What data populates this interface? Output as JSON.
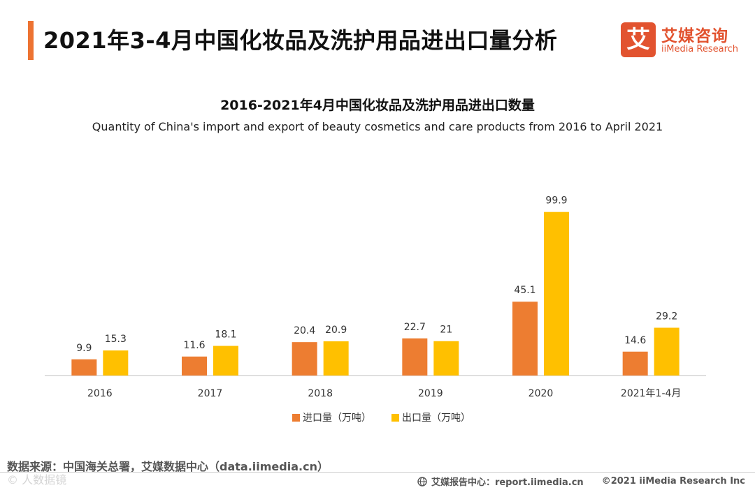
{
  "header": {
    "title": "2021年3-4月中国化妆品及洗护用品进出口量分析",
    "accent_color": "#ED7332"
  },
  "logo": {
    "mark": "艾",
    "name_cn": "艾媒咨询",
    "name_en": "iiMedia Research",
    "color": "#E2532F"
  },
  "chart_data": {
    "type": "bar",
    "title": "2016-2021年4月中国化妆品及洗护用品进出口数量",
    "subtitle": "Quantity of China's import and export of beauty cosmetics and care products from 2016 to April 2021",
    "categories": [
      "2016",
      "2017",
      "2018",
      "2019",
      "2020",
      "2021年1-4月"
    ],
    "series": [
      {
        "name": "进口量（万吨）",
        "color": "#ED7D31",
        "values": [
          9.9,
          11.6,
          20.4,
          22.7,
          45.1,
          14.6
        ]
      },
      {
        "name": "出口量（万吨）",
        "color": "#FFC000",
        "values": [
          15.3,
          18.1,
          20.9,
          21,
          99.9,
          29.2
        ]
      }
    ],
    "ylim": [
      0,
      110
    ],
    "grid": false,
    "legend_position": "bottom-center"
  },
  "source": "数据来源：中国海关总署，艾媒数据中心（data.iimedia.cn）",
  "footer": {
    "report_center": "艾媒报告中心：report.iimedia.cn",
    "copyright": "©2021  iiMedia Research  Inc"
  },
  "watermark": "© 人数据镜"
}
